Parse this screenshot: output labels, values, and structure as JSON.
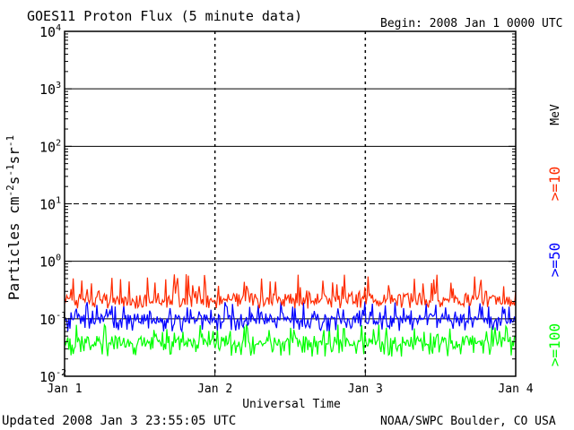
{
  "header": {
    "title": "GOES11 Proton Flux (5 minute data)",
    "begin": "Begin: 2008 Jan 1 0000 UTC"
  },
  "footer": {
    "updated": "Updated 2008 Jan  3 23:55:05 UTC",
    "credit": "NOAA/SWPC Boulder, CO USA"
  },
  "chart_data": {
    "type": "line",
    "title": "GOES11 Proton Flux (5 minute data)",
    "xlabel": "Universal Time",
    "ylabel": "Particles cm-2s-1sr-1",
    "yscale": "log",
    "ylim": [
      0.01,
      10000
    ],
    "x_ticks": [
      "Jan 1",
      "Jan 2",
      "Jan 3",
      "Jan 4"
    ],
    "y_ticks": [
      "10-2",
      "10-1",
      "100",
      "101",
      "102",
      "103",
      "104"
    ],
    "reference_lines": [
      {
        "value": 1,
        "style": "solid"
      },
      {
        "value": 10,
        "style": "dashed"
      },
      {
        "value": 100,
        "style": "solid"
      },
      {
        "value": 1000,
        "style": "solid"
      },
      {
        "value": 0.1,
        "style": "solid"
      }
    ],
    "legend_unit": "MeV",
    "series": [
      {
        "name": ">=10",
        "color": "#ff2a00",
        "baseline": 0.22,
        "spread": [
          0.15,
          0.6
        ]
      },
      {
        "name": ">=50",
        "color": "#0000ff",
        "baseline": 0.1,
        "spread": [
          0.06,
          0.2
        ]
      },
      {
        "name": ">=100",
        "color": "#00ff00",
        "baseline": 0.04,
        "spread": [
          0.022,
          0.08
        ]
      }
    ]
  }
}
